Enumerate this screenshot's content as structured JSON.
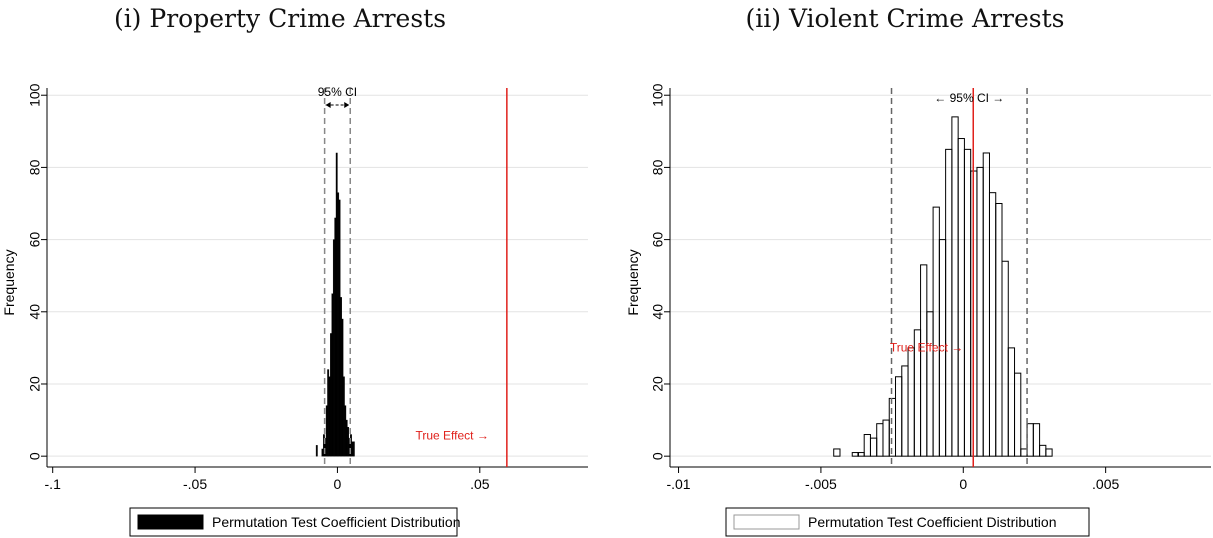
{
  "chart_data": [
    {
      "type": "bar",
      "title": "(i) Property Crime Arrests",
      "ylabel": "Frequency",
      "xlim": [
        -0.102,
        0.088
      ],
      "ylim": [
        -3,
        102
      ],
      "xticks": [
        -0.1,
        -0.05,
        0,
        0.05
      ],
      "xtick_labels": [
        "-.1",
        "-.05",
        "0",
        ".05"
      ],
      "yticks": [
        0,
        20,
        40,
        60,
        80,
        100
      ],
      "grid": "horizontal",
      "bar_style": "filled",
      "bar_color": "#000000",
      "bin_width": 0.0005,
      "bin_starts": [
        -0.0075,
        -0.0055,
        -0.005,
        -0.0045,
        -0.004,
        -0.0035,
        -0.003,
        -0.0025,
        -0.002,
        -0.0015,
        -0.001,
        -0.0005,
        0,
        0.0005,
        0.001,
        0.0015,
        0.002,
        0.0025,
        0.003,
        0.0035,
        0.004,
        0.0045,
        0.005,
        0.0055
      ],
      "values": [
        3,
        2,
        6,
        5,
        14,
        24,
        22,
        34,
        45,
        60,
        66,
        84,
        73,
        71,
        44,
        38,
        22,
        14,
        10,
        8,
        5,
        6,
        4,
        4
      ],
      "ci": [
        -0.0045,
        0.0045
      ],
      "ci_label": "95% CI",
      "true_effect": 0.0595,
      "true_effect_label": "True Effect →",
      "ci_color": "#888888",
      "true_effect_color": "#e0201b",
      "legend": {
        "label": "Permutation Test Coefficient Distribution",
        "position": "bottom",
        "swatch": "filled"
      }
    },
    {
      "type": "bar",
      "title": "(ii) Violent Crime Arrests",
      "ylabel": "Frequency",
      "xlim": [
        -0.0103,
        0.0087
      ],
      "ylim": [
        -3,
        102
      ],
      "xticks": [
        -0.01,
        -0.005,
        0,
        0.005
      ],
      "xtick_labels": [
        "-.01",
        "-.005",
        "0",
        ".005"
      ],
      "yticks": [
        0,
        20,
        40,
        60,
        80,
        100
      ],
      "grid": "horizontal",
      "bar_style": "outline",
      "bar_color": "#000000",
      "bin_width": 0.00022,
      "bin_starts": [
        -0.00455,
        -0.0039,
        -0.0037,
        -0.00348,
        -0.00326,
        -0.00304,
        -0.00282,
        -0.0026,
        -0.00238,
        -0.00216,
        -0.00194,
        -0.00172,
        -0.0015,
        -0.00128,
        -0.00106,
        -0.00084,
        -0.00062,
        -0.0004,
        -0.00018,
        4e-05,
        0.00026,
        0.00048,
        0.0007,
        0.00092,
        0.00114,
        0.00136,
        0.00158,
        0.0018,
        0.00202,
        0.00224,
        0.00246,
        0.00268,
        0.0029
      ],
      "values": [
        2,
        1,
        1,
        6,
        5,
        9,
        10,
        16,
        22,
        25,
        30,
        35,
        53,
        40,
        69,
        60,
        85,
        94,
        88,
        85,
        79,
        80,
        84,
        73,
        70,
        54,
        30,
        23,
        2,
        9,
        9,
        3,
        2
      ],
      "ci": [
        -0.00252,
        0.00224
      ],
      "ci_label": "← 95% CI →",
      "true_effect": 0.00035,
      "true_effect_label": "True Effect →",
      "ci_color": "#666666",
      "true_effect_color": "#e0201b",
      "legend": {
        "label": "Permutation Test Coefficient Distribution",
        "position": "bottom",
        "swatch": "outline"
      }
    }
  ]
}
